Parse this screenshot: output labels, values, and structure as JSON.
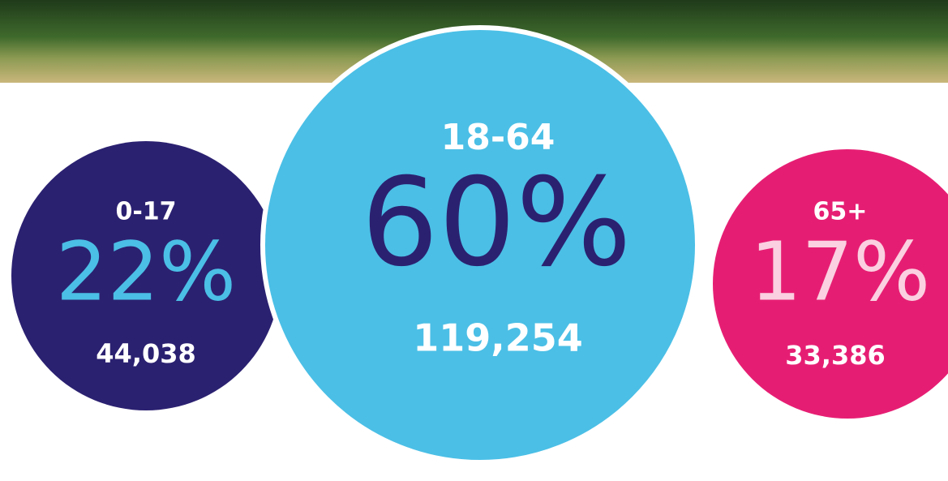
{
  "groups": [
    {
      "label": "0-17",
      "percent": "22%",
      "count": "44,038"
    },
    {
      "label": "18-64",
      "percent": "60%",
      "count": "119,254"
    },
    {
      "label": "65+",
      "percent": "17%",
      "count": "33,386"
    }
  ]
}
